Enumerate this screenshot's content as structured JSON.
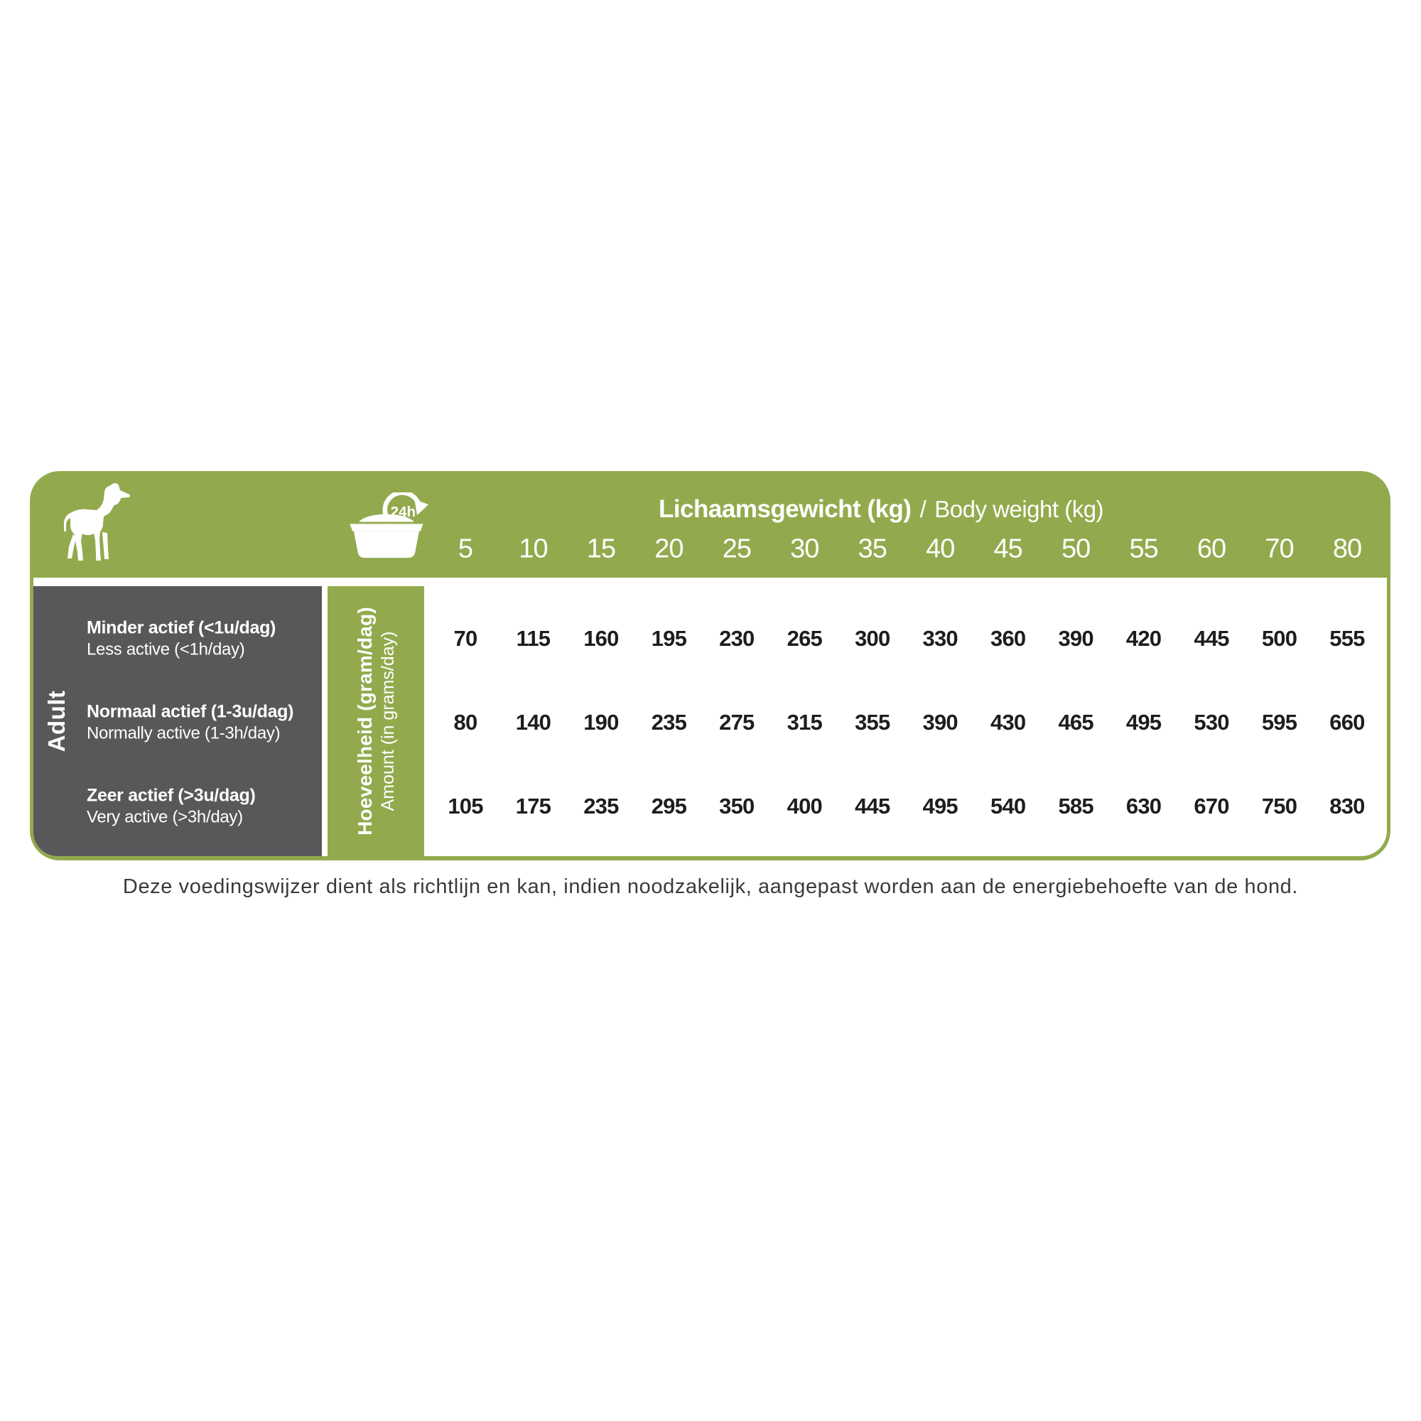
{
  "colors": {
    "green": "#92aa4d",
    "gray": "#58585b",
    "value_text": "#1d1d1b",
    "footer_text": "#3a3a39",
    "white": "#ffffff"
  },
  "header": {
    "title_nl": "Lichaamsgewicht (kg)",
    "separator": "/",
    "title_en": "Body weight (kg)",
    "bowl_badge": "24h",
    "weights": [
      "5",
      "10",
      "15",
      "20",
      "25",
      "30",
      "35",
      "40",
      "45",
      "50",
      "55",
      "60",
      "70",
      "80"
    ]
  },
  "side": {
    "age_group": "Adult"
  },
  "amount_axis": {
    "label_nl": "Hoeveelheid (gram/dag)",
    "label_en": "Amount (in grams/day)"
  },
  "rows": [
    {
      "label_nl": "Minder actief (<1u/dag)",
      "label_en": "Less active (<1h/day)",
      "values": [
        70,
        115,
        160,
        195,
        230,
        265,
        300,
        330,
        360,
        390,
        420,
        445,
        500,
        555
      ]
    },
    {
      "label_nl": "Normaal actief (1-3u/dag)",
      "label_en": "Normally active (1-3h/day)",
      "values": [
        80,
        140,
        190,
        235,
        275,
        315,
        355,
        390,
        430,
        465,
        495,
        530,
        595,
        660
      ]
    },
    {
      "label_nl": "Zeer actief (>3u/dag)",
      "label_en": "Very active (>3h/day)",
      "values": [
        105,
        175,
        235,
        295,
        350,
        400,
        445,
        495,
        540,
        585,
        630,
        670,
        750,
        830
      ]
    }
  ],
  "footer": {
    "note": "Deze voedingswijzer dient als richtlijn en kan, indien noodzakelijk, aangepast worden aan de energiebehoefte van de hond."
  },
  "chart_data": {
    "type": "table",
    "title": "Lichaamsgewicht (kg) / Body weight (kg)",
    "categories": [
      5,
      10,
      15,
      20,
      25,
      30,
      35,
      40,
      45,
      50,
      55,
      60,
      70,
      80
    ],
    "series": [
      {
        "name": "Minder actief (<1u/dag) / Less active (<1h/day)",
        "values": [
          70,
          115,
          160,
          195,
          230,
          265,
          300,
          330,
          360,
          390,
          420,
          445,
          500,
          555
        ]
      },
      {
        "name": "Normaal actief (1-3u/dag) / Normally active (1-3h/day)",
        "values": [
          80,
          140,
          190,
          235,
          275,
          315,
          355,
          390,
          430,
          465,
          495,
          530,
          595,
          660
        ]
      },
      {
        "name": "Zeer actief (>3u/dag) / Very active (>3h/day)",
        "values": [
          105,
          175,
          235,
          295,
          350,
          400,
          445,
          495,
          540,
          585,
          630,
          670,
          750,
          830
        ]
      }
    ],
    "ylabel": "Hoeveelheid (gram/dag) / Amount (in grams/day)",
    "xlabel": "Lichaamsgewicht (kg) / Body weight (kg)"
  }
}
